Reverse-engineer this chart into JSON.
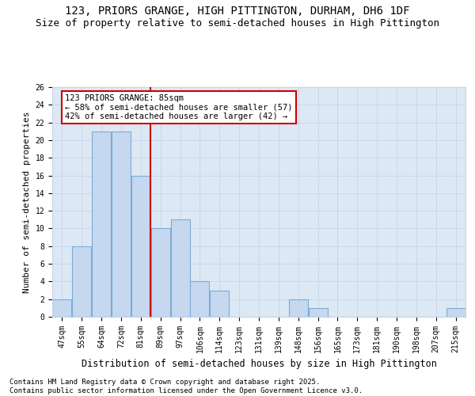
{
  "title_line1": "123, PRIORS GRANGE, HIGH PITTINGTON, DURHAM, DH6 1DF",
  "title_line2": "Size of property relative to semi-detached houses in High Pittington",
  "xlabel": "Distribution of semi-detached houses by size in High Pittington",
  "ylabel": "Number of semi-detached properties",
  "footer": "Contains HM Land Registry data © Crown copyright and database right 2025.\nContains public sector information licensed under the Open Government Licence v3.0.",
  "categories": [
    "47sqm",
    "55sqm",
    "64sqm",
    "72sqm",
    "81sqm",
    "89sqm",
    "97sqm",
    "106sqm",
    "114sqm",
    "123sqm",
    "131sqm",
    "139sqm",
    "148sqm",
    "156sqm",
    "165sqm",
    "173sqm",
    "181sqm",
    "190sqm",
    "198sqm",
    "207sqm",
    "215sqm"
  ],
  "values": [
    2,
    8,
    21,
    21,
    16,
    10,
    11,
    4,
    3,
    0,
    0,
    0,
    2,
    1,
    0,
    0,
    0,
    0,
    0,
    0,
    1
  ],
  "bar_color": "#c5d8f0",
  "bar_edge_color": "#7aadd4",
  "vline_color": "#cc0000",
  "annotation_text": "123 PRIORS GRANGE: 85sqm\n← 58% of semi-detached houses are smaller (57)\n42% of semi-detached houses are larger (42) →",
  "annotation_box_color": "#cc0000",
  "ylim": [
    0,
    26
  ],
  "yticks": [
    0,
    2,
    4,
    6,
    8,
    10,
    12,
    14,
    16,
    18,
    20,
    22,
    24,
    26
  ],
  "grid_color": "#c8d4e8",
  "bg_color": "#dde8f5",
  "title_fontsize": 10,
  "subtitle_fontsize": 9,
  "xlabel_fontsize": 8.5,
  "ylabel_fontsize": 8,
  "tick_fontsize": 7,
  "footer_fontsize": 6.5,
  "annotation_fontsize": 7.5
}
